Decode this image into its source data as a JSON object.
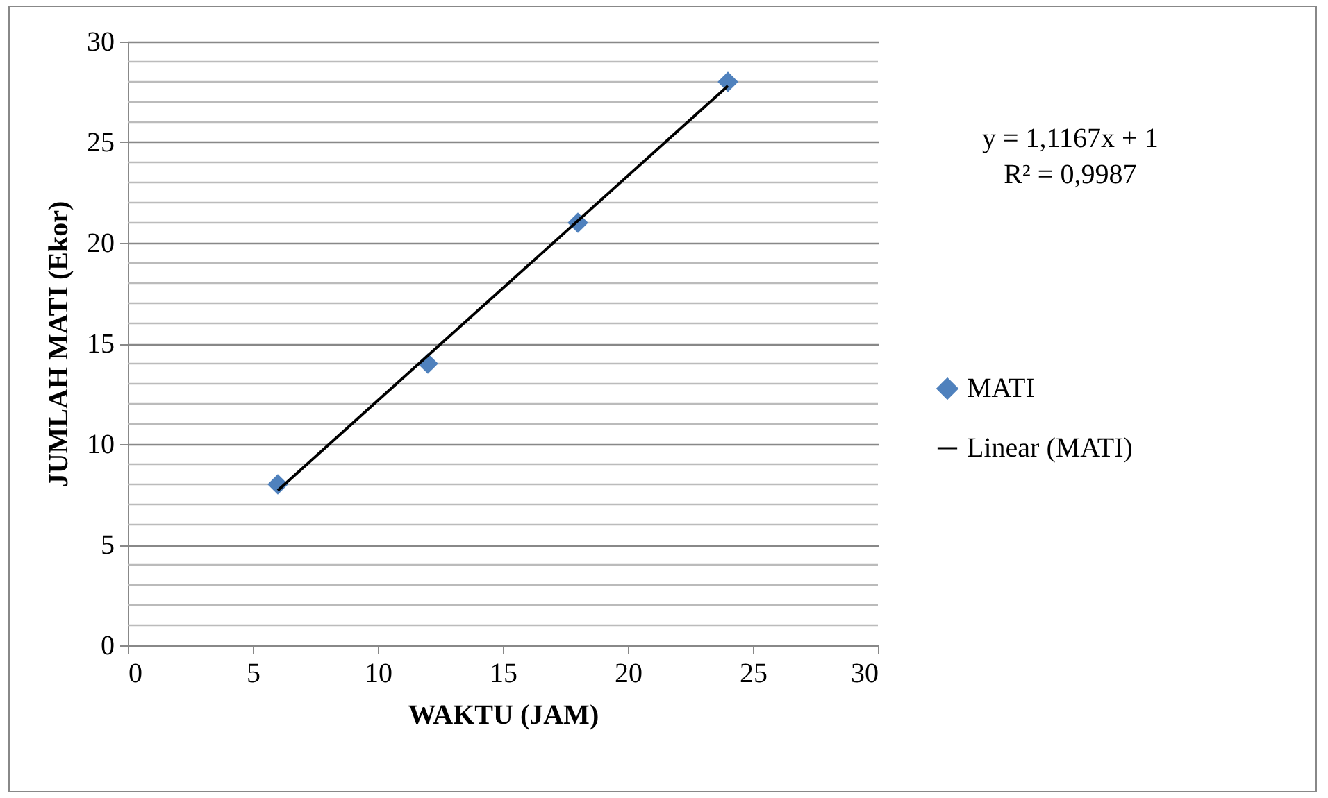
{
  "chart_data": {
    "type": "scatter",
    "xlabel": "WAKTU (JAM)",
    "ylabel": "JUMLAH MATI (Ekor)",
    "annotations": [
      "y = 1,1167x + 1",
      "R² = 0,9987"
    ],
    "series": [
      {
        "name": "MATI",
        "color": "#4f81bd",
        "marker": "diamond",
        "x": [
          6,
          12,
          18,
          24
        ],
        "values": [
          8,
          14,
          21,
          28
        ]
      },
      {
        "name": "Linear (MATI)",
        "type": "line",
        "color": "#000000",
        "x": [
          6,
          24
        ],
        "values": [
          7.7,
          27.8
        ]
      }
    ],
    "grid": "y",
    "legend": "right",
    "xlim": [
      0,
      30
    ],
    "xticks": [
      0,
      5,
      10,
      15,
      20,
      25,
      30
    ],
    "ylim": [
      0,
      30
    ],
    "yticks": [
      0,
      {
        "value": 1,
        "label": null
      },
      {
        "value": 2,
        "label": null
      },
      {
        "value": 3,
        "label": null
      },
      {
        "value": 4,
        "label": null
      },
      5,
      {
        "value": 6,
        "label": null
      },
      {
        "value": 7,
        "label": null
      },
      {
        "value": 8,
        "label": null
      },
      {
        "value": 9,
        "label": null
      },
      10,
      {
        "value": 11,
        "label": null
      },
      {
        "value": 12,
        "label": null
      },
      {
        "value": 13,
        "label": null
      },
      {
        "value": 14,
        "label": null
      },
      15,
      {
        "value": 16,
        "label": null
      },
      {
        "value": 17,
        "label": null
      },
      {
        "value": 18,
        "label": null
      },
      {
        "value": 19,
        "label": null
      },
      20,
      {
        "value": 21,
        "label": null
      },
      {
        "value": 22,
        "label": null
      },
      {
        "value": 23,
        "label": null
      },
      {
        "value": 24,
        "label": null
      },
      25,
      {
        "value": 26,
        "label": null
      },
      {
        "value": 27,
        "label": null
      },
      {
        "value": 28,
        "label": null
      },
      {
        "value": 29,
        "label": null
      },
      30
    ]
  }
}
